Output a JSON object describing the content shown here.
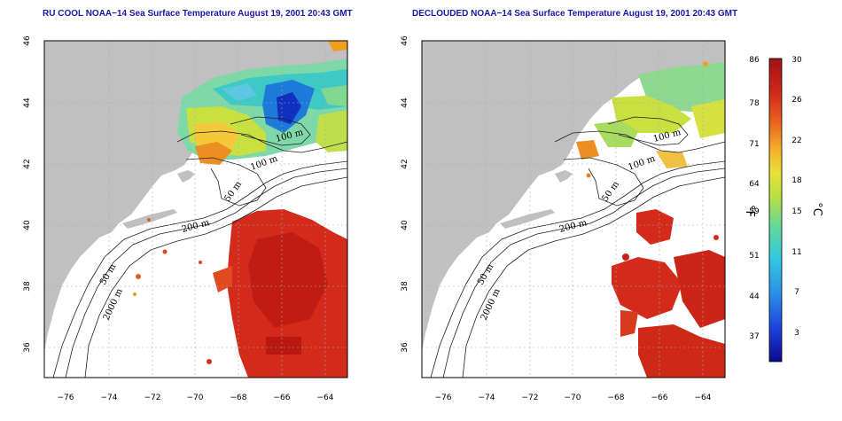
{
  "panels": [
    {
      "title": "RU COOL NOAA−14 Sea Surface Temperature August 19, 2001 20:43 GMT",
      "contour_labels": [
        "100 m",
        "100 m",
        "50 m",
        "200 m",
        "50 m",
        "2000 m"
      ]
    },
    {
      "title": "DECLOUDED NOAA−14 Sea Surface Temperature August 19, 2001 20:43 GMT",
      "contour_labels": [
        "100 m",
        "100 m",
        "50 m",
        "200 m",
        "50 m",
        "2000 m"
      ]
    }
  ],
  "axes": {
    "x_ticks": [
      "−76",
      "−74",
      "−72",
      "−70",
      "−68",
      "−66",
      "−64"
    ],
    "y_ticks": [
      "46",
      "44",
      "42",
      "40",
      "38",
      "36"
    ]
  },
  "colorbar": {
    "fahrenheit_ticks": [
      "86",
      "78",
      "71",
      "64",
      "59",
      "51",
      "44",
      "37"
    ],
    "celsius_ticks": [
      "30",
      "26",
      "22",
      "18",
      "15",
      "11",
      "7",
      "3"
    ],
    "fahrenheit_unit": "°F",
    "celsius_unit": "°C"
  },
  "colors": {
    "land": "#c0c0c0",
    "ocean": "#ffffff",
    "warm": "#d42a1c",
    "title": "#1818a8"
  }
}
